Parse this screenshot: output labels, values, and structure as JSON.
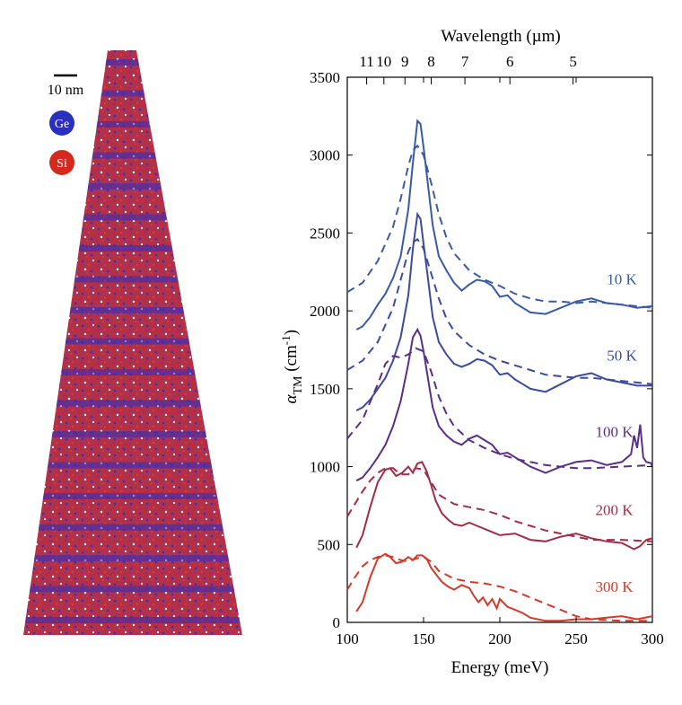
{
  "left_panel": {
    "scale_bar_label": "10 nm",
    "legend": [
      {
        "label": "Ge",
        "color": "#2b2fc0"
      },
      {
        "label": "Si",
        "color": "#d42a1e"
      }
    ]
  },
  "chart_data": {
    "type": "line",
    "xlabel": "Energy (meV)",
    "ylabel_main": "α",
    "ylabel_sub": "TM",
    "ylabel_unit": " (cm",
    "ylabel_sup": "-1",
    "ylabel_close": ")",
    "top_axis_label": "Wavelength (µm)",
    "xlim": [
      100,
      300
    ],
    "ylim": [
      0,
      3500
    ],
    "x_ticks": [
      100,
      150,
      200,
      250,
      300
    ],
    "y_ticks": [
      0,
      500,
      1000,
      1500,
      2000,
      2500,
      3000,
      3500
    ],
    "top_ticks": [
      {
        "label": "11",
        "energy": 112.7
      },
      {
        "label": "10",
        "energy": 124.0
      },
      {
        "label": "9",
        "energy": 137.8
      },
      {
        "label": "8",
        "energy": 155.0
      },
      {
        "label": "7",
        "energy": 177.1
      },
      {
        "label": "6",
        "energy": 206.6
      },
      {
        "label": "5",
        "energy": 248.0
      }
    ],
    "series": [
      {
        "name": "10 K",
        "color": "#3a5aa6",
        "label_position": {
          "x": 280,
          "y": 2170
        },
        "measured": {
          "x": [
            106,
            110,
            115,
            120,
            125,
            130,
            135,
            140,
            143,
            146,
            148,
            150,
            153,
            156,
            160,
            165,
            170,
            175,
            180,
            185,
            190,
            195,
            200,
            205,
            210,
            215,
            220,
            230,
            240,
            250,
            260,
            270,
            280,
            290,
            300
          ],
          "y": [
            1880,
            1900,
            1960,
            2040,
            2110,
            2210,
            2350,
            2650,
            2950,
            3220,
            3200,
            3050,
            2800,
            2550,
            2350,
            2260,
            2180,
            2130,
            2170,
            2200,
            2190,
            2160,
            2090,
            2100,
            2050,
            2020,
            1990,
            1980,
            2020,
            2060,
            2080,
            2050,
            2040,
            2020,
            2030
          ]
        },
        "model": {
          "x": [
            100,
            110,
            120,
            130,
            135,
            140,
            143,
            146,
            150,
            155,
            160,
            165,
            170,
            180,
            190,
            200,
            210,
            220,
            230,
            240,
            250,
            260,
            280,
            300
          ],
          "y": [
            2120,
            2180,
            2320,
            2540,
            2720,
            2930,
            3030,
            3060,
            3000,
            2820,
            2620,
            2470,
            2370,
            2260,
            2200,
            2160,
            2110,
            2080,
            2060,
            2060,
            2050,
            2060,
            2040,
            2020
          ]
        }
      },
      {
        "name": "50 K",
        "color": "#3d4a9e",
        "label_position": {
          "x": 280,
          "y": 1680
        },
        "measured": {
          "x": [
            106,
            110,
            115,
            120,
            125,
            130,
            135,
            140,
            143,
            146,
            148,
            150,
            153,
            156,
            160,
            165,
            170,
            175,
            180,
            185,
            190,
            195,
            200,
            205,
            210,
            215,
            220,
            230,
            240,
            250,
            260,
            270,
            280,
            290,
            300
          ],
          "y": [
            1360,
            1380,
            1430,
            1500,
            1570,
            1680,
            1830,
            2100,
            2400,
            2620,
            2590,
            2430,
            2200,
            1960,
            1800,
            1720,
            1660,
            1640,
            1660,
            1690,
            1680,
            1650,
            1590,
            1600,
            1560,
            1530,
            1500,
            1480,
            1530,
            1580,
            1600,
            1560,
            1540,
            1520,
            1520
          ]
        },
        "model": {
          "x": [
            100,
            110,
            120,
            130,
            135,
            140,
            143,
            146,
            150,
            155,
            160,
            165,
            170,
            180,
            190,
            200,
            210,
            220,
            230,
            240,
            250,
            260,
            280,
            300
          ],
          "y": [
            1620,
            1680,
            1800,
            2020,
            2200,
            2380,
            2440,
            2460,
            2400,
            2240,
            2080,
            1950,
            1870,
            1780,
            1720,
            1680,
            1650,
            1620,
            1590,
            1580,
            1570,
            1570,
            1550,
            1530
          ]
        }
      },
      {
        "name": "100 K",
        "color": "#5a2f86",
        "label_position": {
          "x": 275,
          "y": 1190
        },
        "measured": {
          "x": [
            106,
            110,
            115,
            120,
            125,
            130,
            135,
            140,
            143,
            146,
            148,
            150,
            153,
            156,
            160,
            165,
            170,
            175,
            180,
            185,
            190,
            195,
            200,
            205,
            210,
            215,
            220,
            230,
            240,
            250,
            260,
            270,
            280,
            286,
            288,
            290,
            292,
            294,
            296,
            300
          ],
          "y": [
            910,
            930,
            990,
            1060,
            1140,
            1260,
            1420,
            1660,
            1830,
            1880,
            1840,
            1740,
            1560,
            1380,
            1260,
            1200,
            1160,
            1140,
            1180,
            1200,
            1170,
            1140,
            1080,
            1090,
            1060,
            1030,
            1000,
            960,
            1000,
            1030,
            1040,
            1010,
            1030,
            1080,
            1200,
            1120,
            1270,
            1060,
            1030,
            1020
          ]
        },
        "model": {
          "x": [
            100,
            110,
            120,
            125,
            130,
            135,
            140,
            145,
            150,
            155,
            160,
            165,
            170,
            180,
            190,
            200,
            210,
            220,
            230,
            240,
            250,
            260,
            280,
            300
          ],
          "y": [
            1180,
            1300,
            1530,
            1660,
            1710,
            1700,
            1720,
            1760,
            1740,
            1610,
            1450,
            1340,
            1260,
            1170,
            1120,
            1080,
            1050,
            1030,
            1010,
            1000,
            990,
            990,
            1000,
            1010
          ]
        }
      },
      {
        "name": "200 K",
        "color": "#a02d4a",
        "label_position": {
          "x": 275,
          "y": 690
        },
        "measured": {
          "x": [
            106,
            110,
            115,
            120,
            125,
            128,
            132,
            136,
            140,
            143,
            146,
            149,
            152,
            155,
            158,
            162,
            166,
            170,
            175,
            180,
            185,
            190,
            195,
            200,
            210,
            220,
            230,
            240,
            250,
            260,
            270,
            280,
            288,
            292,
            296,
            300
          ],
          "y": [
            480,
            560,
            740,
            900,
            980,
            990,
            940,
            960,
            1000,
            960,
            1020,
            1030,
            970,
            880,
            780,
            700,
            660,
            630,
            620,
            640,
            620,
            600,
            580,
            560,
            570,
            530,
            520,
            550,
            570,
            540,
            520,
            510,
            470,
            490,
            530,
            540
          ]
        },
        "model": {
          "x": [
            100,
            105,
            110,
            115,
            120,
            125,
            130,
            135,
            140,
            145,
            150,
            155,
            160,
            170,
            180,
            190,
            200,
            210,
            220,
            230,
            240,
            250,
            260,
            280,
            300
          ],
          "y": [
            680,
            760,
            840,
            910,
            960,
            990,
            990,
            950,
            950,
            990,
            980,
            900,
            820,
            760,
            740,
            720,
            690,
            650,
            620,
            590,
            570,
            550,
            530,
            530,
            520
          ]
        }
      },
      {
        "name": "300 K",
        "color": "#d23a2a",
        "label_position": {
          "x": 275,
          "y": 195
        },
        "measured": {
          "x": [
            106,
            110,
            115,
            120,
            125,
            128,
            132,
            136,
            140,
            143,
            146,
            149,
            152,
            155,
            158,
            162,
            166,
            170,
            175,
            180,
            183,
            186,
            189,
            192,
            195,
            198,
            200,
            205,
            210,
            215,
            220,
            230,
            240,
            250,
            260,
            270,
            280,
            290,
            300
          ],
          "y": [
            70,
            130,
            290,
            410,
            440,
            420,
            380,
            390,
            420,
            400,
            430,
            430,
            410,
            350,
            310,
            260,
            230,
            210,
            240,
            220,
            170,
            130,
            160,
            110,
            150,
            90,
            150,
            100,
            80,
            60,
            30,
            10,
            10,
            20,
            20,
            30,
            40,
            20,
            40
          ]
        },
        "model": {
          "x": [
            100,
            105,
            110,
            115,
            120,
            125,
            130,
            135,
            140,
            145,
            150,
            155,
            160,
            170,
            180,
            190,
            200,
            210,
            220,
            230,
            240,
            250,
            260,
            280,
            300
          ],
          "y": [
            210,
            290,
            360,
            400,
            420,
            430,
            420,
            400,
            390,
            410,
            420,
            390,
            330,
            280,
            260,
            250,
            230,
            200,
            160,
            120,
            80,
            40,
            20,
            10,
            10
          ]
        }
      }
    ]
  }
}
